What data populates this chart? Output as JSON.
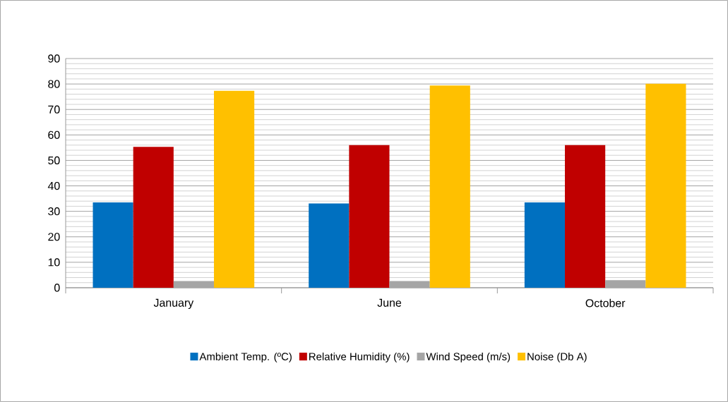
{
  "chart_data": {
    "type": "bar",
    "categories": [
      "January",
      "June",
      "October"
    ],
    "series": [
      {
        "name": "Ambient Temp. (ºC)",
        "color": "#0070c0",
        "values": [
          33.5,
          33.1,
          33.5
        ]
      },
      {
        "name": "Relative Humidity (%)",
        "color": "#c00000",
        "values": [
          55.3,
          56.0,
          56.0
        ]
      },
      {
        "name": "Wind Speed (m/s)",
        "color": "#a5a5a5",
        "values": [
          2.6,
          2.6,
          3.0
        ]
      },
      {
        "name": "Noise (Db A)",
        "color": "#ffc000",
        "values": [
          77.3,
          79.4,
          80.1
        ]
      }
    ],
    "ylim": [
      0,
      90
    ],
    "yticks": [
      0,
      10,
      20,
      30,
      40,
      50,
      60,
      70,
      80,
      90
    ],
    "grid": "y",
    "legend": "bottom"
  }
}
